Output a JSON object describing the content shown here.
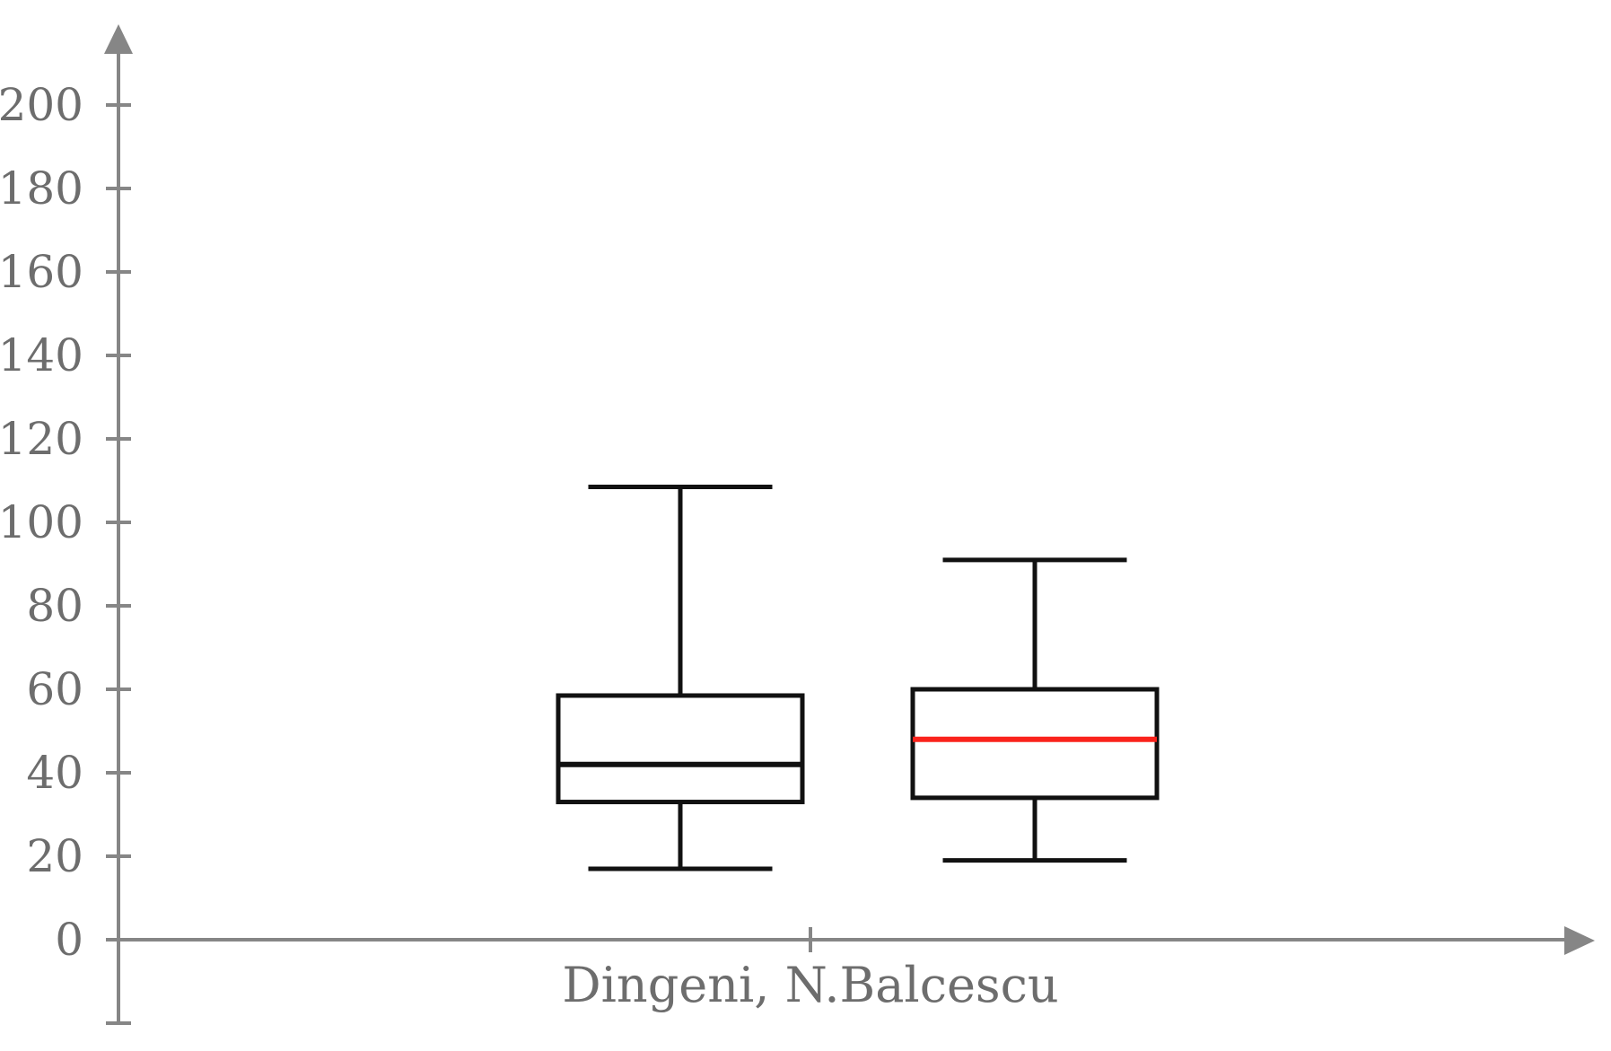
{
  "chart_data": {
    "type": "boxplot",
    "title": "",
    "xlabel": "Dingeni, N.Balcescu",
    "ylabel": "",
    "ylim": [
      0,
      200
    ],
    "ytick_step": 20,
    "yticks": [
      0,
      20,
      40,
      60,
      80,
      100,
      120,
      140,
      160,
      180,
      200
    ],
    "grid": false,
    "legend": "none",
    "series": [
      {
        "name": "Dingeni",
        "min": 17,
        "q1": 33,
        "median": 42,
        "q3": 58.5,
        "max": 108.5,
        "median_color": "#111111"
      },
      {
        "name": "N.Balcescu",
        "min": 19,
        "q1": 34,
        "median": 48,
        "q3": 60,
        "max": 91,
        "median_color": "#fa231c"
      }
    ],
    "colors": {
      "axis": "#868686",
      "tick_label": "#6d6d6d",
      "box_stroke": "#111111",
      "box_fill": "#ffffff",
      "highlight_median": "#fa231c",
      "background": "#ffffff"
    }
  }
}
